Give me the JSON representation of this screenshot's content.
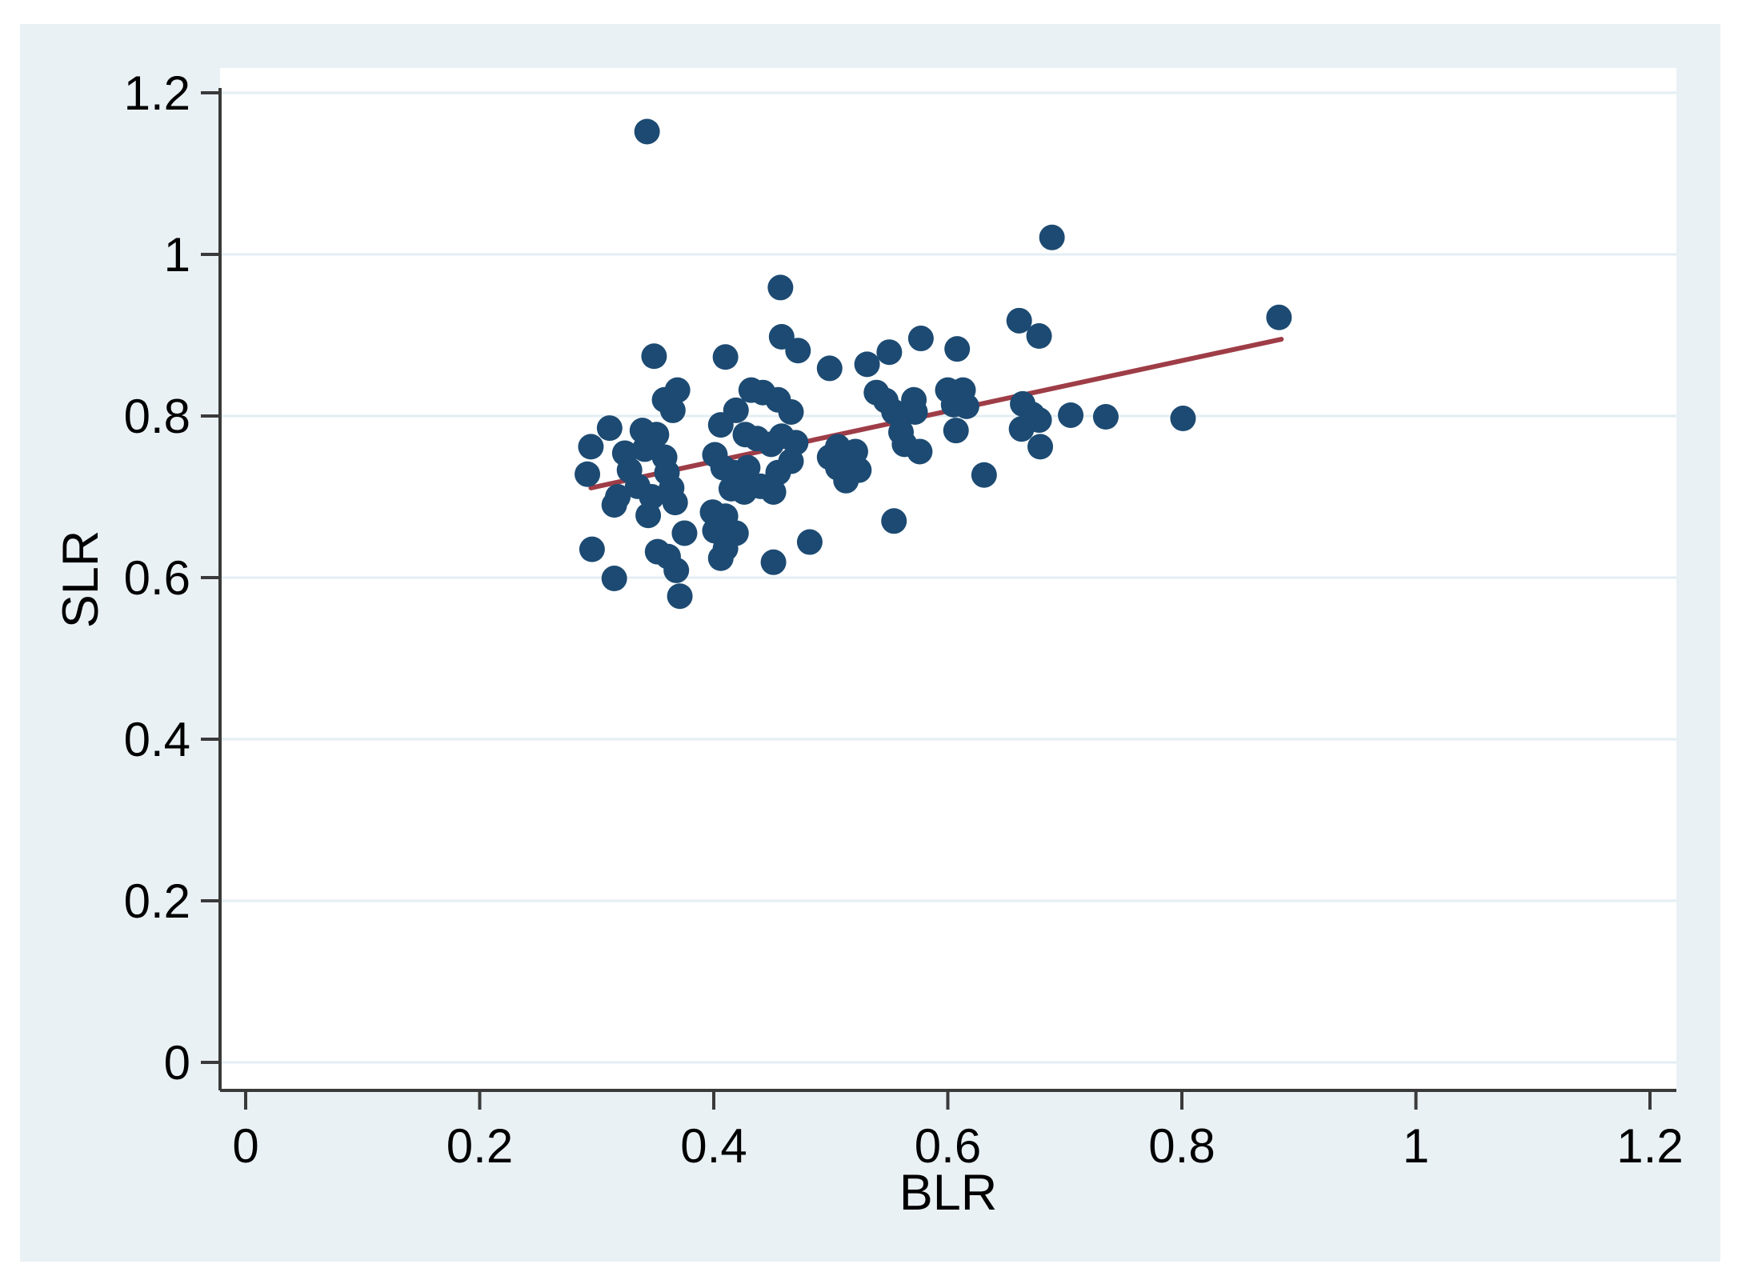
{
  "chart_data": {
    "type": "scatter",
    "title": "",
    "xlabel": "BLR",
    "ylabel": "SLR",
    "xlim": [
      -0.022,
      1.223
    ],
    "ylim": [
      -0.035,
      1.231
    ],
    "grid": "horizontal",
    "legend": "none",
    "xticks": {
      "values": [
        0,
        0.2,
        0.4,
        0.6,
        0.8,
        1.0,
        1.2
      ],
      "labels": [
        "0",
        "0.2",
        "0.4",
        "0.6",
        "0.8",
        "1",
        "1.2"
      ]
    },
    "yticks": {
      "values": [
        0,
        0.2,
        0.4,
        0.6,
        0.8,
        1.0,
        1.2
      ],
      "labels": [
        "0",
        "0.2",
        "0.4",
        "0.6",
        "0.8",
        "1",
        "1.2"
      ]
    },
    "points": [
      [
        0.343,
        1.152
      ],
      [
        0.457,
        0.959
      ],
      [
        0.689,
        1.021
      ],
      [
        0.661,
        0.918
      ],
      [
        0.678,
        0.899
      ],
      [
        0.883,
        0.922
      ],
      [
        0.705,
        0.801
      ],
      [
        0.735,
        0.799
      ],
      [
        0.801,
        0.797
      ],
      [
        0.499,
        0.859
      ],
      [
        0.531,
        0.864
      ],
      [
        0.55,
        0.879
      ],
      [
        0.577,
        0.896
      ],
      [
        0.608,
        0.883
      ],
      [
        0.539,
        0.829
      ],
      [
        0.547,
        0.819
      ],
      [
        0.554,
        0.805
      ],
      [
        0.571,
        0.82
      ],
      [
        0.572,
        0.805
      ],
      [
        0.56,
        0.78
      ],
      [
        0.563,
        0.765
      ],
      [
        0.576,
        0.756
      ],
      [
        0.6,
        0.832
      ],
      [
        0.613,
        0.832
      ],
      [
        0.605,
        0.814
      ],
      [
        0.616,
        0.812
      ],
      [
        0.607,
        0.782
      ],
      [
        0.631,
        0.727
      ],
      [
        0.664,
        0.815
      ],
      [
        0.672,
        0.802
      ],
      [
        0.663,
        0.784
      ],
      [
        0.678,
        0.795
      ],
      [
        0.679,
        0.762
      ],
      [
        0.506,
        0.762
      ],
      [
        0.521,
        0.756
      ],
      [
        0.499,
        0.749
      ],
      [
        0.506,
        0.736
      ],
      [
        0.524,
        0.733
      ],
      [
        0.513,
        0.72
      ],
      [
        0.554,
        0.67
      ],
      [
        0.349,
        0.874
      ],
      [
        0.41,
        0.873
      ],
      [
        0.472,
        0.881
      ],
      [
        0.458,
        0.898
      ],
      [
        0.369,
        0.832
      ],
      [
        0.358,
        0.82
      ],
      [
        0.365,
        0.807
      ],
      [
        0.311,
        0.785
      ],
      [
        0.295,
        0.762
      ],
      [
        0.292,
        0.728
      ],
      [
        0.324,
        0.754
      ],
      [
        0.339,
        0.782
      ],
      [
        0.351,
        0.777
      ],
      [
        0.341,
        0.759
      ],
      [
        0.328,
        0.733
      ],
      [
        0.335,
        0.713
      ],
      [
        0.318,
        0.7
      ],
      [
        0.315,
        0.69
      ],
      [
        0.344,
        0.677
      ],
      [
        0.347,
        0.7
      ],
      [
        0.358,
        0.749
      ],
      [
        0.36,
        0.73
      ],
      [
        0.364,
        0.711
      ],
      [
        0.367,
        0.693
      ],
      [
        0.406,
        0.789
      ],
      [
        0.419,
        0.807
      ],
      [
        0.432,
        0.832
      ],
      [
        0.442,
        0.829
      ],
      [
        0.455,
        0.82
      ],
      [
        0.466,
        0.805
      ],
      [
        0.427,
        0.777
      ],
      [
        0.437,
        0.772
      ],
      [
        0.449,
        0.765
      ],
      [
        0.458,
        0.775
      ],
      [
        0.47,
        0.767
      ],
      [
        0.401,
        0.752
      ],
      [
        0.408,
        0.736
      ],
      [
        0.417,
        0.73
      ],
      [
        0.429,
        0.736
      ],
      [
        0.415,
        0.71
      ],
      [
        0.426,
        0.706
      ],
      [
        0.44,
        0.713
      ],
      [
        0.451,
        0.706
      ],
      [
        0.455,
        0.73
      ],
      [
        0.466,
        0.744
      ],
      [
        0.399,
        0.681
      ],
      [
        0.41,
        0.676
      ],
      [
        0.296,
        0.635
      ],
      [
        0.315,
        0.599
      ],
      [
        0.352,
        0.632
      ],
      [
        0.361,
        0.626
      ],
      [
        0.368,
        0.609
      ],
      [
        0.371,
        0.577
      ],
      [
        0.375,
        0.655
      ],
      [
        0.401,
        0.658
      ],
      [
        0.419,
        0.655
      ],
      [
        0.41,
        0.636
      ],
      [
        0.406,
        0.624
      ],
      [
        0.451,
        0.619
      ],
      [
        0.482,
        0.644
      ]
    ],
    "fit_line": {
      "x1": 0.295,
      "y1": 0.711,
      "x2": 0.885,
      "y2": 0.895
    },
    "colors": {
      "marker": "#1c4a72",
      "fit_line": "#9e3d47",
      "plot_bg": "#ffffff",
      "graph_bg": "#eaf1f5",
      "gridline": "#e3eef3",
      "axis": "#3a3a3a",
      "text": "#000000"
    }
  }
}
